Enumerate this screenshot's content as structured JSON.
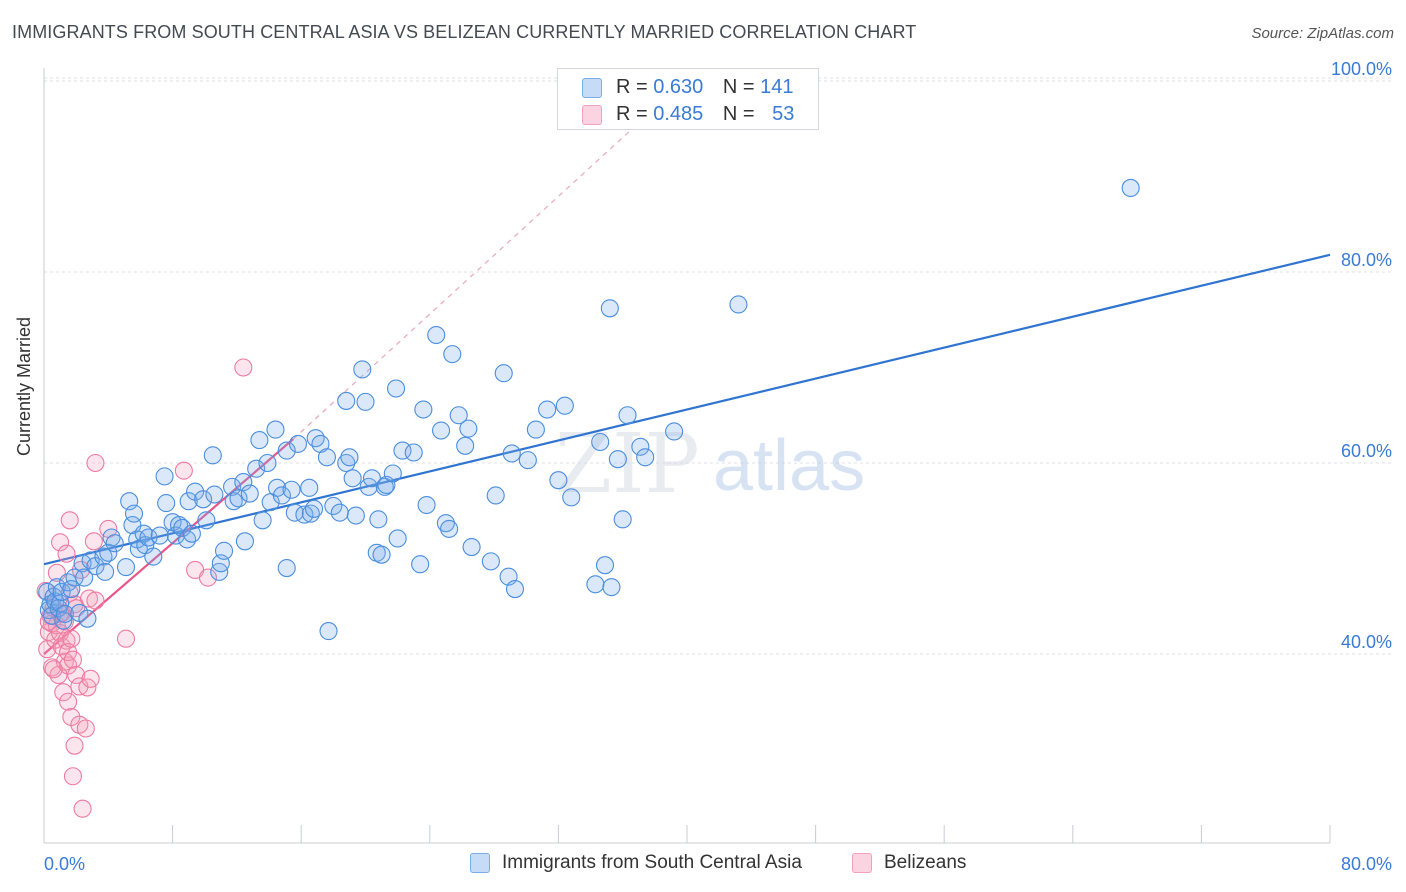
{
  "title": "IMMIGRANTS FROM SOUTH CENTRAL ASIA VS BELIZEAN CURRENTLY MARRIED CORRELATION CHART",
  "source": "Source: ZipAtlas.com",
  "watermark": {
    "zip": "ZIP",
    "atlas": "atlas"
  },
  "legend_top": [
    {
      "r_label": "R = ",
      "r_value": "0.630",
      "n_label": "N = ",
      "n_value": "141",
      "color": "#7aaee8"
    },
    {
      "r_label": "R = ",
      "r_value": "0.485",
      "n_label": "N = ",
      "n_value": "53",
      "color": "#f4a0bc"
    }
  ],
  "legend_bottom": [
    {
      "label": "Immigrants from South Central Asia",
      "color": "#7aaee8"
    },
    {
      "label": "Belizeans",
      "color": "#f4a0bc"
    }
  ],
  "colors": {
    "blue": "#4a8ede",
    "blue_line": "#2f74d0",
    "pink": "#ee7aa2",
    "pink_line": "#e8558a",
    "axis_text": "#3a7bd5"
  },
  "chart_data": {
    "type": "scatter",
    "title": "IMMIGRANTS FROM SOUTH CENTRAL ASIA VS BELIZEAN CURRENTLY MARRIED CORRELATION CHART",
    "xlabel": "",
    "ylabel": "Currently Married",
    "xlim": [
      0,
      80
    ],
    "ylim": [
      22,
      104
    ],
    "x_tick_labels": [
      "0.0%",
      "80.0%"
    ],
    "y_ticks": [
      40,
      60,
      80,
      100
    ],
    "y_tick_labels": [
      "40.0%",
      "60.0%",
      "80.0%",
      "100.0%"
    ],
    "grid": true,
    "legend_position": "top-center",
    "series": [
      {
        "name": "Immigrants from South Central Asia",
        "R": 0.63,
        "N": 141,
        "trend": {
          "x": [
            0,
            80
          ],
          "y": [
            49.4,
            81.8
          ]
        },
        "points": [
          [
            0.2,
            46.5
          ],
          [
            0.3,
            44.6
          ],
          [
            0.4,
            45.2
          ],
          [
            0.5,
            44.0
          ],
          [
            0.6,
            46.0
          ],
          [
            0.7,
            45.5
          ],
          [
            0.8,
            47.0
          ],
          [
            0.9,
            44.8
          ],
          [
            1.0,
            45.3
          ],
          [
            1.1,
            46.5
          ],
          [
            1.2,
            43.5
          ],
          [
            1.3,
            44.2
          ],
          [
            1.5,
            47.5
          ],
          [
            1.7,
            46.8
          ],
          [
            1.9,
            48.0
          ],
          [
            2.2,
            44.3
          ],
          [
            2.4,
            49.5
          ],
          [
            2.5,
            48.0
          ],
          [
            2.7,
            43.7
          ],
          [
            2.9,
            49.8
          ],
          [
            3.2,
            49.2
          ],
          [
            3.7,
            50.2
          ],
          [
            3.8,
            48.6
          ],
          [
            4.0,
            50.6
          ],
          [
            4.2,
            52.2
          ],
          [
            4.4,
            51.6
          ],
          [
            5.1,
            49.1
          ],
          [
            5.3,
            56.0
          ],
          [
            5.5,
            53.5
          ],
          [
            5.6,
            54.7
          ],
          [
            5.8,
            52.0
          ],
          [
            5.9,
            51.0
          ],
          [
            6.2,
            52.6
          ],
          [
            6.3,
            51.4
          ],
          [
            6.5,
            52.2
          ],
          [
            6.8,
            50.2
          ],
          [
            7.2,
            52.4
          ],
          [
            7.5,
            58.6
          ],
          [
            7.6,
            55.8
          ],
          [
            8.0,
            53.8
          ],
          [
            8.2,
            52.4
          ],
          [
            8.4,
            53.5
          ],
          [
            8.6,
            53.2
          ],
          [
            8.9,
            52.0
          ],
          [
            9.0,
            56.0
          ],
          [
            9.2,
            52.6
          ],
          [
            9.4,
            57.0
          ],
          [
            9.9,
            56.2
          ],
          [
            10.1,
            54.0
          ],
          [
            10.5,
            60.8
          ],
          [
            10.6,
            56.7
          ],
          [
            10.9,
            48.6
          ],
          [
            11.0,
            49.5
          ],
          [
            11.2,
            50.8
          ],
          [
            11.7,
            57.5
          ],
          [
            11.8,
            56.0
          ],
          [
            12.1,
            56.3
          ],
          [
            12.4,
            58.0
          ],
          [
            12.5,
            51.8
          ],
          [
            12.8,
            56.8
          ],
          [
            13.2,
            59.4
          ],
          [
            13.4,
            62.4
          ],
          [
            13.6,
            54.0
          ],
          [
            13.9,
            60.0
          ],
          [
            14.1,
            55.9
          ],
          [
            14.4,
            63.5
          ],
          [
            14.5,
            57.4
          ],
          [
            14.8,
            56.6
          ],
          [
            15.1,
            61.3
          ],
          [
            15.1,
            49.0
          ],
          [
            15.4,
            57.2
          ],
          [
            15.6,
            54.8
          ],
          [
            15.8,
            62.0
          ],
          [
            16.2,
            54.6
          ],
          [
            16.5,
            57.4
          ],
          [
            16.6,
            54.7
          ],
          [
            16.8,
            55.2
          ],
          [
            16.9,
            62.6
          ],
          [
            17.2,
            62.0
          ],
          [
            17.6,
            60.6
          ],
          [
            17.7,
            42.4
          ],
          [
            18.0,
            55.5
          ],
          [
            18.4,
            54.8
          ],
          [
            18.8,
            66.5
          ],
          [
            18.8,
            60.0
          ],
          [
            19.0,
            60.6
          ],
          [
            19.2,
            58.4
          ],
          [
            19.4,
            54.5
          ],
          [
            19.8,
            69.8
          ],
          [
            20.0,
            66.4
          ],
          [
            20.2,
            57.5
          ],
          [
            20.4,
            58.4
          ],
          [
            20.7,
            50.6
          ],
          [
            20.8,
            54.1
          ],
          [
            21.0,
            50.4
          ],
          [
            21.2,
            57.5
          ],
          [
            21.3,
            57.7
          ],
          [
            21.7,
            58.9
          ],
          [
            21.9,
            67.8
          ],
          [
            22.0,
            52.1
          ],
          [
            22.3,
            61.3
          ],
          [
            23.0,
            61.1
          ],
          [
            23.4,
            49.4
          ],
          [
            23.6,
            65.6
          ],
          [
            23.8,
            55.6
          ],
          [
            24.4,
            73.4
          ],
          [
            24.7,
            63.4
          ],
          [
            25.0,
            53.7
          ],
          [
            25.2,
            53.1
          ],
          [
            25.4,
            71.4
          ],
          [
            25.8,
            65.0
          ],
          [
            26.2,
            61.8
          ],
          [
            26.4,
            63.6
          ],
          [
            26.6,
            51.2
          ],
          [
            27.8,
            49.7
          ],
          [
            28.1,
            56.6
          ],
          [
            28.6,
            69.4
          ],
          [
            28.9,
            48.1
          ],
          [
            29.1,
            61.0
          ],
          [
            29.3,
            46.8
          ],
          [
            30.1,
            60.3
          ],
          [
            30.6,
            63.5
          ],
          [
            31.3,
            65.6
          ],
          [
            32.0,
            58.2
          ],
          [
            32.4,
            66.0
          ],
          [
            32.8,
            56.4
          ],
          [
            34.3,
            47.3
          ],
          [
            34.6,
            62.2
          ],
          [
            34.9,
            49.3
          ],
          [
            35.2,
            76.2
          ],
          [
            35.3,
            47.0
          ],
          [
            35.7,
            60.4
          ],
          [
            36.0,
            54.1
          ],
          [
            36.3,
            65.0
          ],
          [
            37.1,
            61.7
          ],
          [
            37.4,
            60.6
          ],
          [
            39.2,
            63.3
          ],
          [
            43.2,
            76.6
          ],
          [
            67.6,
            88.8
          ]
        ]
      },
      {
        "name": "Belizeans",
        "R": 0.485,
        "N": 53,
        "trend": {
          "x": [
            0,
            15.5
          ],
          "y": [
            40.0,
            62.5
          ]
        },
        "trend_extension": {
          "x": [
            15.5,
            36.6
          ],
          "y": [
            62.5,
            95.0
          ]
        },
        "points": [
          [
            0.1,
            46.6
          ],
          [
            0.2,
            40.5
          ],
          [
            0.3,
            42.3
          ],
          [
            0.4,
            44.0
          ],
          [
            0.5,
            43.2
          ],
          [
            0.5,
            38.6
          ],
          [
            0.6,
            44.8
          ],
          [
            0.7,
            41.5
          ],
          [
            0.8,
            43.0
          ],
          [
            0.8,
            48.5
          ],
          [
            0.9,
            37.8
          ],
          [
            1.0,
            42.2
          ],
          [
            1.0,
            51.7
          ],
          [
            1.1,
            44.3
          ],
          [
            1.1,
            40.8
          ],
          [
            1.2,
            36.0
          ],
          [
            1.3,
            39.2
          ],
          [
            1.3,
            43.4
          ],
          [
            1.4,
            41.4
          ],
          [
            1.4,
            50.5
          ],
          [
            1.5,
            35.0
          ],
          [
            1.5,
            38.8
          ],
          [
            1.5,
            40.2
          ],
          [
            1.6,
            54.0
          ],
          [
            1.6,
            46.4
          ],
          [
            1.7,
            41.6
          ],
          [
            1.7,
            33.4
          ],
          [
            1.8,
            27.2
          ],
          [
            1.8,
            39.4
          ],
          [
            1.9,
            30.4
          ],
          [
            1.9,
            45.2
          ],
          [
            2.0,
            37.8
          ],
          [
            2.0,
            44.8
          ],
          [
            2.2,
            36.6
          ],
          [
            2.2,
            32.6
          ],
          [
            2.3,
            48.8
          ],
          [
            2.4,
            23.8
          ],
          [
            2.6,
            32.2
          ],
          [
            2.7,
            36.5
          ],
          [
            2.8,
            45.8
          ],
          [
            2.9,
            37.4
          ],
          [
            3.1,
            51.8
          ],
          [
            3.2,
            45.6
          ],
          [
            3.2,
            60.0
          ],
          [
            4.0,
            53.1
          ],
          [
            5.1,
            41.6
          ],
          [
            8.7,
            59.2
          ],
          [
            9.4,
            48.8
          ],
          [
            10.2,
            48.0
          ],
          [
            12.4,
            70.0
          ],
          [
            0.3,
            43.4
          ],
          [
            0.6,
            38.4
          ],
          [
            1.0,
            44.2
          ]
        ]
      }
    ]
  }
}
